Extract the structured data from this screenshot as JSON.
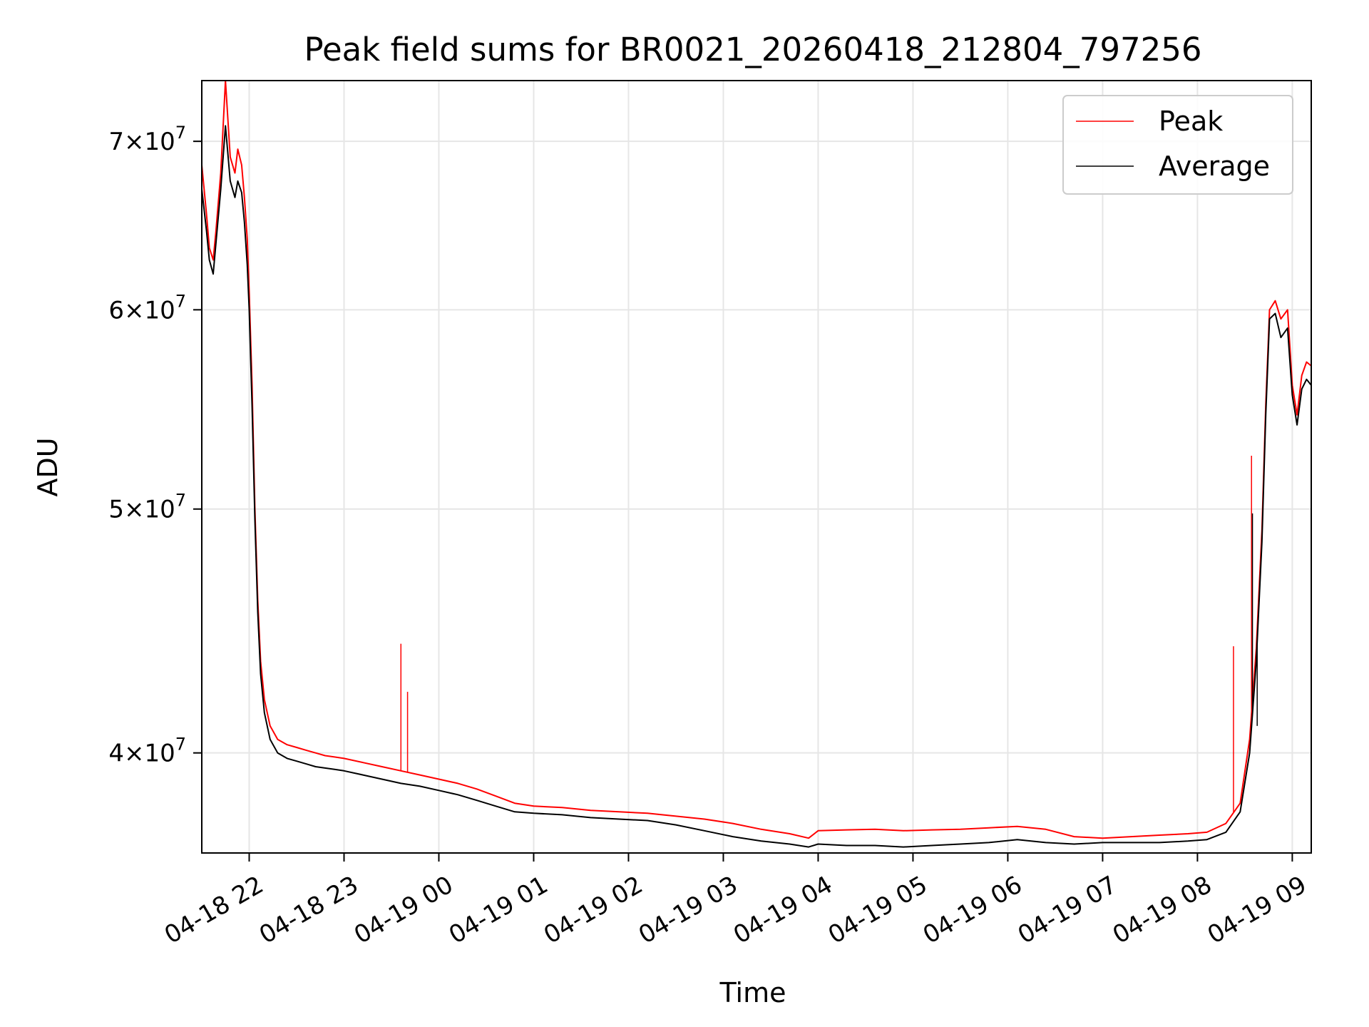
{
  "chart_data": {
    "type": "line",
    "title": "Peak field sums for BR0021_20260418_212804_797256",
    "xlabel": "Time",
    "ylabel": "ADU",
    "yscale": "log",
    "xlim": [
      -0.5,
      11.2
    ],
    "ylim": [
      36500000,
      74000000
    ],
    "grid": true,
    "legend_position": "top-right",
    "x_ticks": [
      {
        "value": 0,
        "label": "04-18 22"
      },
      {
        "value": 1,
        "label": "04-18 23"
      },
      {
        "value": 2,
        "label": "04-19 00"
      },
      {
        "value": 3,
        "label": "04-19 01"
      },
      {
        "value": 4,
        "label": "04-19 02"
      },
      {
        "value": 5,
        "label": "04-19 03"
      },
      {
        "value": 6,
        "label": "04-19 04"
      },
      {
        "value": 7,
        "label": "04-19 05"
      },
      {
        "value": 8,
        "label": "04-19 06"
      },
      {
        "value": 9,
        "label": "04-19 07"
      },
      {
        "value": 10,
        "label": "04-19 08"
      },
      {
        "value": 11,
        "label": "04-19 09"
      }
    ],
    "y_ticks": [
      {
        "value": 40000000,
        "mantissa": "4",
        "exponent": "7"
      },
      {
        "value": 50000000,
        "mantissa": "5",
        "exponent": "7"
      },
      {
        "value": 60000000,
        "mantissa": "6",
        "exponent": "7"
      },
      {
        "value": 70000000,
        "mantissa": "7",
        "exponent": "7"
      }
    ],
    "x_unit_note": "hours relative to 04-18 22:00",
    "series": [
      {
        "name": "Peak",
        "color": "#ff0000",
        "points": [
          [
            -0.5,
            68500000
          ],
          [
            -0.45,
            65500000
          ],
          [
            -0.42,
            63500000
          ],
          [
            -0.38,
            62800000
          ],
          [
            -0.35,
            64500000
          ],
          [
            -0.3,
            68000000
          ],
          [
            -0.25,
            74000000
          ],
          [
            -0.2,
            69000000
          ],
          [
            -0.15,
            68000000
          ],
          [
            -0.12,
            69500000
          ],
          [
            -0.08,
            68500000
          ],
          [
            -0.05,
            66500000
          ],
          [
            -0.02,
            64000000
          ],
          [
            0.0,
            61000000
          ],
          [
            0.03,
            56000000
          ],
          [
            0.06,
            50000000
          ],
          [
            0.09,
            46000000
          ],
          [
            0.12,
            43500000
          ],
          [
            0.16,
            42000000
          ],
          [
            0.22,
            41000000
          ],
          [
            0.3,
            40500000
          ],
          [
            0.4,
            40300000
          ],
          [
            0.5,
            40200000
          ],
          [
            0.6,
            40100000
          ],
          [
            0.7,
            40000000
          ],
          [
            0.8,
            39900000
          ],
          [
            0.9,
            39850000
          ],
          [
            1.0,
            39800000
          ],
          [
            1.2,
            39650000
          ],
          [
            1.4,
            39500000
          ],
          [
            1.6,
            39350000
          ],
          [
            1.8,
            39200000
          ],
          [
            2.0,
            39050000
          ],
          [
            2.2,
            38900000
          ],
          [
            2.4,
            38700000
          ],
          [
            2.6,
            38450000
          ],
          [
            2.8,
            38200000
          ],
          [
            3.0,
            38100000
          ],
          [
            3.3,
            38050000
          ],
          [
            3.6,
            37950000
          ],
          [
            3.9,
            37900000
          ],
          [
            4.2,
            37850000
          ],
          [
            4.5,
            37750000
          ],
          [
            4.8,
            37650000
          ],
          [
            5.1,
            37500000
          ],
          [
            5.4,
            37300000
          ],
          [
            5.7,
            37150000
          ],
          [
            5.9,
            37000000
          ],
          [
            6.0,
            37250000
          ],
          [
            6.3,
            37280000
          ],
          [
            6.6,
            37300000
          ],
          [
            6.9,
            37250000
          ],
          [
            7.2,
            37280000
          ],
          [
            7.5,
            37300000
          ],
          [
            7.8,
            37350000
          ],
          [
            8.1,
            37400000
          ],
          [
            8.4,
            37300000
          ],
          [
            8.7,
            37050000
          ],
          [
            9.0,
            37000000
          ],
          [
            9.3,
            37050000
          ],
          [
            9.6,
            37100000
          ],
          [
            9.9,
            37150000
          ],
          [
            10.1,
            37200000
          ],
          [
            10.3,
            37500000
          ],
          [
            10.45,
            38200000
          ],
          [
            10.55,
            40500000
          ],
          [
            10.62,
            44000000
          ],
          [
            10.68,
            49000000
          ],
          [
            10.72,
            55000000
          ],
          [
            10.76,
            60000000
          ],
          [
            10.82,
            60500000
          ],
          [
            10.88,
            59500000
          ],
          [
            10.95,
            60000000
          ],
          [
            11.0,
            56000000
          ],
          [
            11.05,
            54500000
          ],
          [
            11.1,
            56500000
          ],
          [
            11.15,
            57200000
          ],
          [
            11.2,
            57000000
          ]
        ]
      },
      {
        "name": "Average",
        "color": "#000000",
        "points": [
          [
            -0.5,
            67000000
          ],
          [
            -0.45,
            64500000
          ],
          [
            -0.42,
            62800000
          ],
          [
            -0.38,
            62000000
          ],
          [
            -0.35,
            63800000
          ],
          [
            -0.3,
            67000000
          ],
          [
            -0.25,
            71000000
          ],
          [
            -0.2,
            67500000
          ],
          [
            -0.15,
            66500000
          ],
          [
            -0.12,
            67500000
          ],
          [
            -0.08,
            66800000
          ],
          [
            -0.05,
            65000000
          ],
          [
            -0.02,
            62500000
          ],
          [
            0.0,
            60000000
          ],
          [
            0.03,
            55000000
          ],
          [
            0.06,
            49500000
          ],
          [
            0.09,
            45500000
          ],
          [
            0.12,
            43000000
          ],
          [
            0.16,
            41500000
          ],
          [
            0.22,
            40500000
          ],
          [
            0.3,
            40000000
          ],
          [
            0.4,
            39800000
          ],
          [
            0.5,
            39700000
          ],
          [
            0.6,
            39600000
          ],
          [
            0.7,
            39500000
          ],
          [
            0.8,
            39450000
          ],
          [
            0.9,
            39400000
          ],
          [
            1.0,
            39350000
          ],
          [
            1.2,
            39200000
          ],
          [
            1.4,
            39050000
          ],
          [
            1.6,
            38900000
          ],
          [
            1.8,
            38800000
          ],
          [
            2.0,
            38650000
          ],
          [
            2.2,
            38500000
          ],
          [
            2.4,
            38300000
          ],
          [
            2.6,
            38100000
          ],
          [
            2.8,
            37900000
          ],
          [
            3.0,
            37850000
          ],
          [
            3.3,
            37800000
          ],
          [
            3.6,
            37700000
          ],
          [
            3.9,
            37650000
          ],
          [
            4.2,
            37600000
          ],
          [
            4.5,
            37450000
          ],
          [
            4.8,
            37250000
          ],
          [
            5.1,
            37050000
          ],
          [
            5.4,
            36900000
          ],
          [
            5.7,
            36800000
          ],
          [
            5.9,
            36700000
          ],
          [
            6.0,
            36800000
          ],
          [
            6.3,
            36750000
          ],
          [
            6.6,
            36750000
          ],
          [
            6.9,
            36700000
          ],
          [
            7.2,
            36750000
          ],
          [
            7.5,
            36800000
          ],
          [
            7.8,
            36850000
          ],
          [
            8.1,
            36950000
          ],
          [
            8.4,
            36850000
          ],
          [
            8.7,
            36800000
          ],
          [
            9.0,
            36850000
          ],
          [
            9.3,
            36850000
          ],
          [
            9.6,
            36850000
          ],
          [
            9.9,
            36900000
          ],
          [
            10.1,
            36950000
          ],
          [
            10.3,
            37200000
          ],
          [
            10.45,
            37900000
          ],
          [
            10.55,
            40000000
          ],
          [
            10.62,
            43500000
          ],
          [
            10.68,
            48500000
          ],
          [
            10.72,
            54500000
          ],
          [
            10.76,
            59500000
          ],
          [
            10.82,
            59800000
          ],
          [
            10.88,
            58500000
          ],
          [
            10.95,
            59000000
          ],
          [
            11.0,
            55500000
          ],
          [
            11.05,
            54000000
          ],
          [
            11.1,
            55800000
          ],
          [
            11.15,
            56300000
          ],
          [
            11.2,
            56000000
          ]
        ]
      }
    ],
    "spikes": [
      {
        "series": "Peak",
        "x": 1.6,
        "y": 44200000
      },
      {
        "series": "Peak",
        "x": 1.67,
        "y": 42300000
      },
      {
        "series": "Peak",
        "x": 10.38,
        "y": 44100000
      },
      {
        "series": "Peak",
        "x": 10.57,
        "y": 52500000
      },
      {
        "series": "Average",
        "x": 10.58,
        "y": 49800000
      },
      {
        "series": "Average",
        "x": 10.63,
        "y": 41000000
      }
    ]
  }
}
